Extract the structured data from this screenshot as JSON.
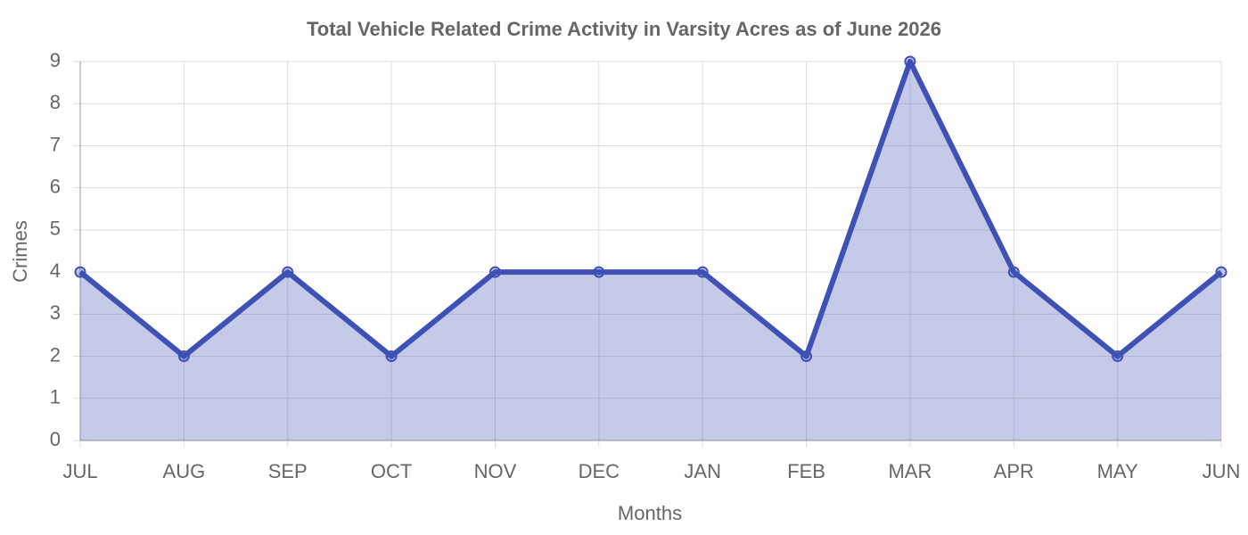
{
  "chart_data": {
    "type": "area",
    "title": "Total Vehicle Related Crime Activity in Varsity Acres as of June 2026",
    "x_label": "Months",
    "y_label": "Crimes",
    "categories": [
      "JUL",
      "AUG",
      "SEP",
      "OCT",
      "NOV",
      "DEC",
      "JAN",
      "FEB",
      "MAR",
      "APR",
      "MAY",
      "JUN"
    ],
    "values": [
      4,
      2,
      4,
      2,
      4,
      4,
      4,
      2,
      9,
      4,
      2,
      4
    ],
    "color": "#3f51b5",
    "fill": "rgba(63,81,181,0.3)",
    "ylim": [
      0,
      9
    ],
    "yticks": [
      0,
      1,
      2,
      3,
      4,
      5,
      6,
      7,
      8,
      9
    ],
    "grid": true
  }
}
